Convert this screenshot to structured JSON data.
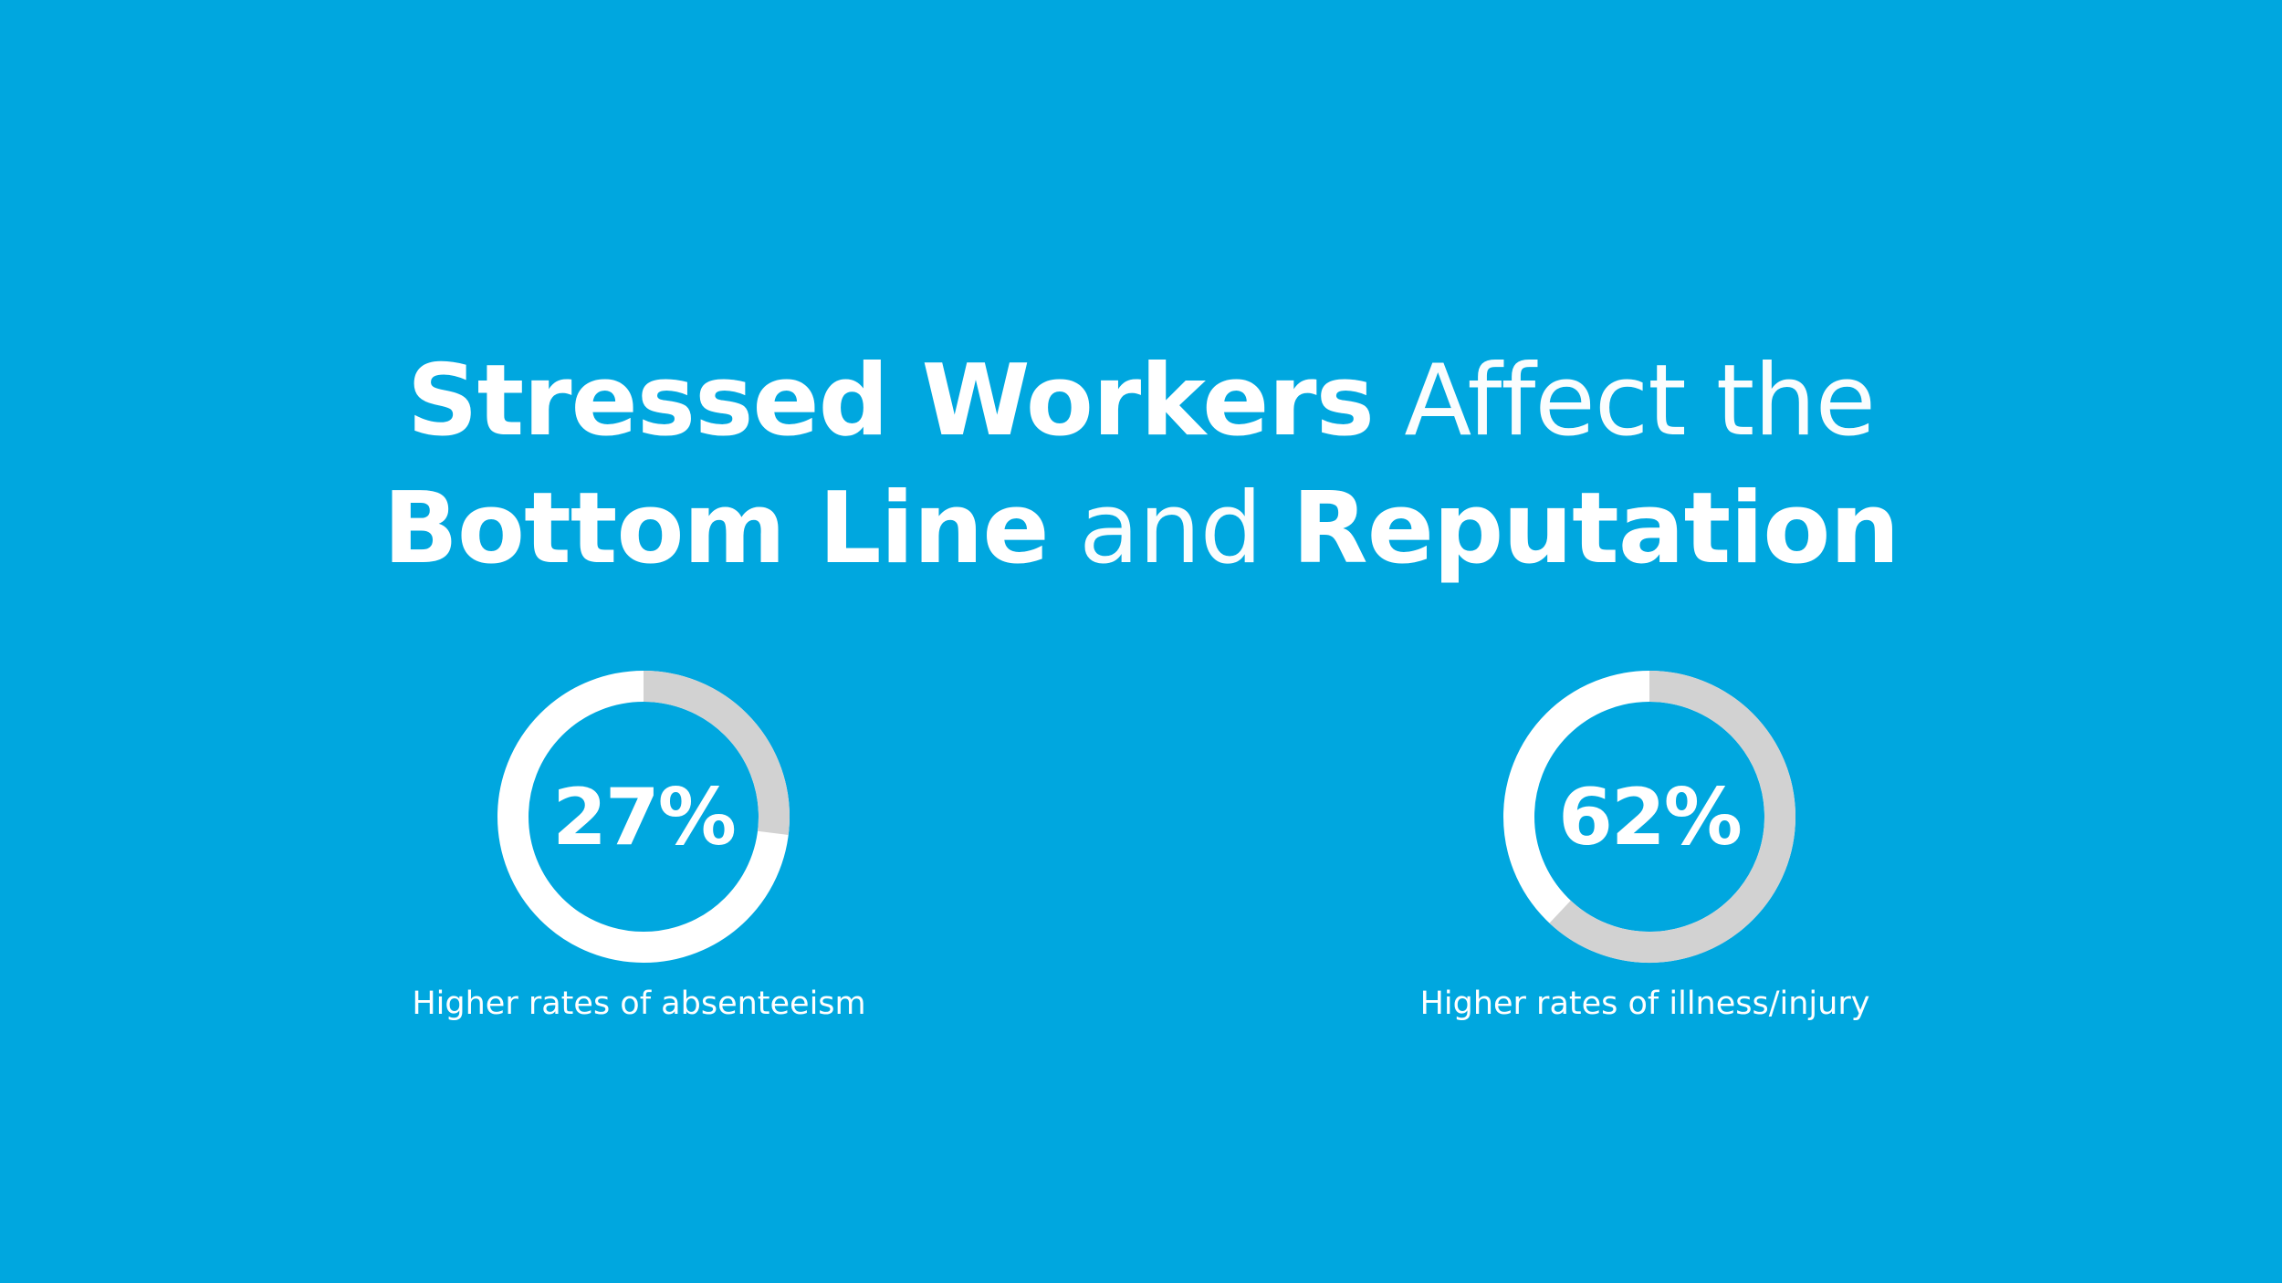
{
  "page": {
    "background_color": "#00a7df",
    "text_color": "#ffffff"
  },
  "title": {
    "line1_bold": "Stressed Workers",
    "line1_light": "Affect the",
    "line2_bold_a": "Bottom Line",
    "line2_light": "and",
    "line2_bold_b": "Reputation"
  },
  "chart_data": [
    {
      "type": "pie",
      "value": 27,
      "value_label": "27%",
      "label": "Higher rates of absenteeism",
      "colors": {
        "highlight": "#d2d2d2",
        "remainder": "#ffffff"
      }
    },
    {
      "type": "pie",
      "value": 62,
      "value_label": "62%",
      "label": "Higher rates of illness/injury",
      "colors": {
        "highlight": "#d2d2d2",
        "remainder": "#ffffff"
      }
    }
  ]
}
